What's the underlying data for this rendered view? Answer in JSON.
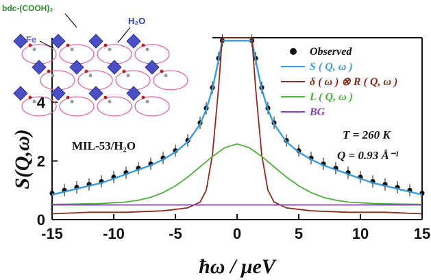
{
  "chart_data": {
    "type": "line",
    "title": "",
    "xlabel": "ħω / μeV",
    "ylabel": "S(Q,ω)",
    "xlim": [
      -15,
      15
    ],
    "ylim": [
      0,
      6.2
    ],
    "xticks": [
      -15,
      -10,
      -5,
      0,
      5,
      10,
      15
    ],
    "yticks": [
      0,
      2,
      4
    ],
    "legend_position": "top-right",
    "annotations": {
      "sample": "MIL-53/H₂O",
      "temperature": "T = 260 K",
      "q_value": "Q = 0.93 Å⁻¹"
    },
    "series": [
      {
        "name": "Observed",
        "style": "points",
        "color": "#111111",
        "x": [
          -15,
          -14,
          -13,
          -12,
          -11,
          -10,
          -9,
          -8,
          -7,
          -6,
          -5,
          -4,
          -3,
          -2.5,
          -2,
          -1.5,
          -1.2,
          1.2,
          1.5,
          2,
          2.5,
          3,
          4,
          5,
          6,
          7,
          8,
          9,
          10,
          11,
          12,
          13,
          14,
          15
        ],
        "y": [
          0.9,
          1.0,
          1.1,
          1.2,
          1.3,
          1.45,
          1.6,
          1.75,
          1.9,
          2.1,
          2.35,
          2.7,
          3.3,
          3.8,
          4.5,
          5.5,
          6.1,
          6.1,
          5.5,
          4.5,
          3.8,
          3.3,
          2.7,
          2.35,
          2.1,
          1.9,
          1.75,
          1.6,
          1.45,
          1.3,
          1.2,
          1.1,
          1.0,
          0.9
        ]
      },
      {
        "name": "S ( Q, ω )",
        "style": "line",
        "color": "#3b9bd9",
        "x": [
          -15,
          -14,
          -13,
          -12,
          -11,
          -10,
          -9,
          -8,
          -7,
          -6,
          -5,
          -4,
          -3,
          -2.5,
          -2,
          -1.5,
          -1.2,
          1.2,
          1.5,
          2,
          2.5,
          3,
          4,
          5,
          6,
          7,
          8,
          9,
          10,
          11,
          12,
          13,
          14,
          15
        ],
        "y": [
          0.85,
          0.95,
          1.05,
          1.15,
          1.25,
          1.4,
          1.55,
          1.7,
          1.85,
          2.05,
          2.3,
          2.65,
          3.25,
          3.75,
          4.45,
          5.45,
          6.1,
          6.1,
          5.45,
          4.45,
          3.75,
          3.25,
          2.65,
          2.3,
          2.05,
          1.85,
          1.7,
          1.55,
          1.4,
          1.25,
          1.15,
          1.05,
          0.95,
          0.85
        ]
      },
      {
        "name": "δ ( ω ) ⊗ R ( Q, ω )",
        "style": "line",
        "color": "#8b2a1a",
        "x": [
          -15,
          -12,
          -9,
          -6,
          -4,
          -3,
          -2.5,
          -2,
          -1.5,
          -1.2,
          1.2,
          1.5,
          2,
          2.5,
          3,
          4,
          6,
          9,
          12,
          15
        ],
        "y": [
          0.2,
          0.25,
          0.25,
          0.3,
          0.4,
          0.6,
          1.0,
          2.2,
          4.5,
          6.2,
          6.2,
          4.5,
          2.2,
          1.0,
          0.6,
          0.4,
          0.3,
          0.25,
          0.25,
          0.2
        ]
      },
      {
        "name": "L ( Q, ω )",
        "style": "line",
        "color": "#4caf3a",
        "x": [
          -15,
          -13,
          -11,
          -9,
          -8,
          -7,
          -6,
          -5,
          -4,
          -3,
          -2,
          -1,
          0,
          1,
          2,
          3,
          4,
          5,
          6,
          7,
          8,
          9,
          11,
          13,
          15
        ],
        "y": [
          0.52,
          0.53,
          0.55,
          0.6,
          0.66,
          0.76,
          0.92,
          1.15,
          1.45,
          1.8,
          2.15,
          2.45,
          2.58,
          2.45,
          2.15,
          1.8,
          1.45,
          1.15,
          0.92,
          0.76,
          0.66,
          0.6,
          0.55,
          0.53,
          0.52
        ]
      },
      {
        "name": "BG",
        "style": "line",
        "color": "#8a3fb0",
        "x": [
          -15,
          15
        ],
        "y": [
          0.5,
          0.5
        ]
      }
    ]
  },
  "inset": {
    "labels": {
      "ligand": "bdc-(COOH)₂",
      "metal": "Fe",
      "guest": "H₂O"
    },
    "colors": {
      "ligand": "#2e8b2e",
      "metal": "#6a6fd8",
      "guest": "#2a3cb5",
      "octahedra": "#4a4fc4"
    }
  }
}
